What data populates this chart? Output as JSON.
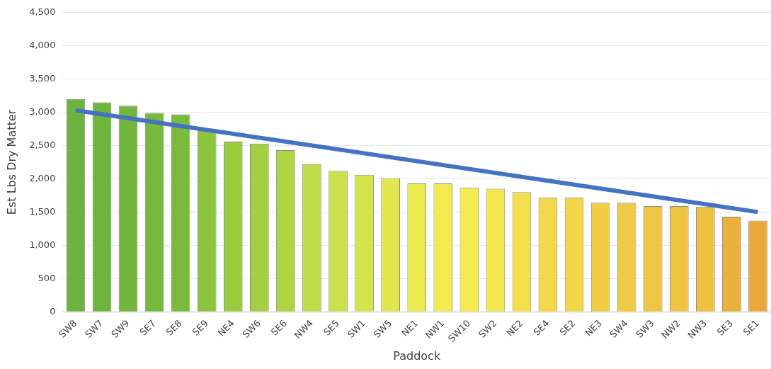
{
  "chart_data": {
    "type": "bar",
    "xlabel": "Paddock",
    "ylabel": "Est Lbs Dry Matter",
    "categories": [
      "SW8",
      "SW7",
      "SW9",
      "SE7",
      "SE8",
      "SE9",
      "NE4",
      "SW6",
      "SE6",
      "NW4",
      "SE5",
      "SW1",
      "SW5",
      "NE1",
      "NW1",
      "SW10",
      "SW2",
      "NE2",
      "SE4",
      "SE2",
      "NE3",
      "SW4",
      "SW3",
      "NW2",
      "NW3",
      "SE3",
      "SE1"
    ],
    "series": [
      {
        "values": [
          3200,
          3150,
          3100,
          2990,
          2970,
          2730,
          2560,
          2530,
          2430,
          2220,
          2120,
          2060,
          2010,
          1930,
          1930,
          1870,
          1850,
          1800,
          1720,
          1720,
          1640,
          1640,
          1590,
          1590,
          1580,
          1430,
          1370
        ],
        "colors": [
          "#6db33f",
          "#6fb53c",
          "#72b73c",
          "#76b93c",
          "#7abb3c",
          "#8cc43e",
          "#9acb40",
          "#a3cf42",
          "#afd444",
          "#bfdb47",
          "#cbe04a",
          "#d6e44c",
          "#e1e74d",
          "#ecea4f",
          "#f2eb50",
          "#f4ea4f",
          "#f4e64e",
          "#f3e04c",
          "#f3d84a",
          "#f3d548",
          "#f1cd45",
          "#f0ca44",
          "#efc643",
          "#efc442",
          "#eec142",
          "#eab13c",
          "#e9a93a"
        ]
      },
      {
        "type": "line",
        "color": "#4472c4",
        "x": [
          "SW8",
          "SE1"
        ],
        "values": [
          3030,
          1500
        ]
      }
    ],
    "ylim": [
      0,
      4500
    ],
    "yticks": [
      {
        "value": 0,
        "label": "0"
      },
      {
        "value": 500,
        "label": "500"
      },
      {
        "value": 1000,
        "label": "1,000"
      },
      {
        "value": 1500,
        "label": "1,500"
      },
      {
        "value": 2000,
        "label": "2,000"
      },
      {
        "value": 2500,
        "label": "2,500"
      },
      {
        "value": 3000,
        "label": "3,000"
      },
      {
        "value": 3500,
        "label": "3,500"
      },
      {
        "value": 4000,
        "label": "4,000"
      },
      {
        "value": 4500,
        "label": "4,500"
      }
    ],
    "grid": "y",
    "legend": false,
    "marker": "none"
  }
}
